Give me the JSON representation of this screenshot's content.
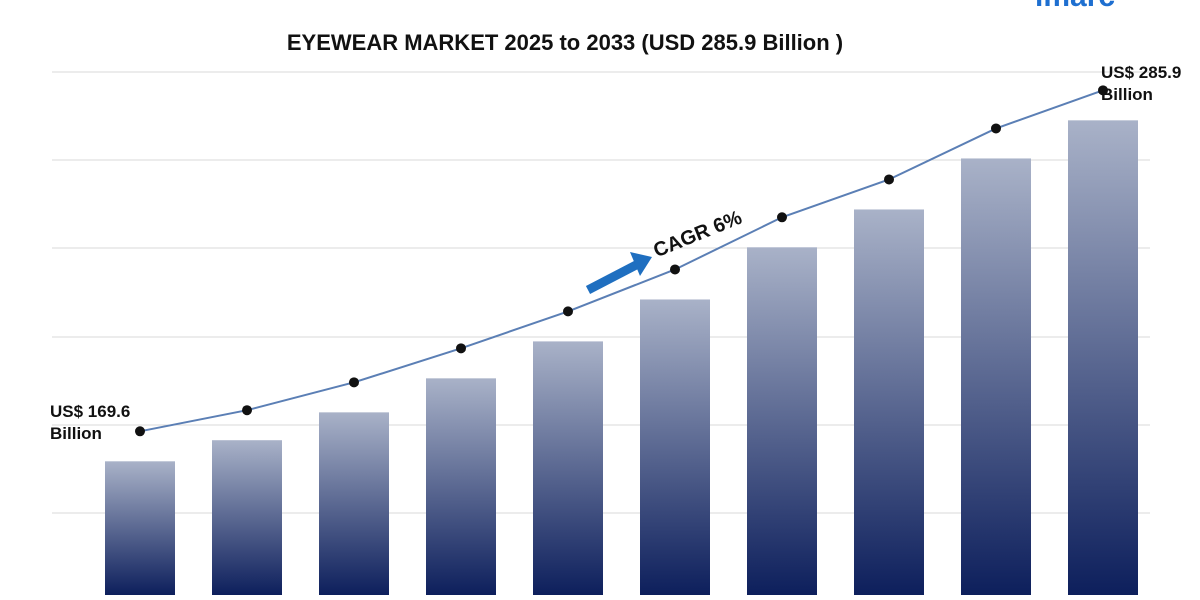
{
  "chart_data": {
    "type": "bar",
    "title": "EYEWEAR MARKET 2025 to 2033 (USD 285.9 Billion )",
    "logo": "imarc",
    "annotation": "CAGR 6%",
    "categories": [
      null,
      null,
      null,
      null,
      null,
      null,
      null,
      null,
      null,
      null
    ],
    "values": [
      169.6,
      176.8,
      186.3,
      197.9,
      210.5,
      224.8,
      242.6,
      255.5,
      272.9,
      285.9
    ],
    "value_labels": [
      "US$ 169.6 Billion",
      null,
      null,
      null,
      null,
      null,
      null,
      null,
      null,
      "US$ 285.9 Billion"
    ],
    "ylim": [
      124,
      300
    ],
    "line_color": "#5b7fb5",
    "color": "#0d1f5c"
  }
}
